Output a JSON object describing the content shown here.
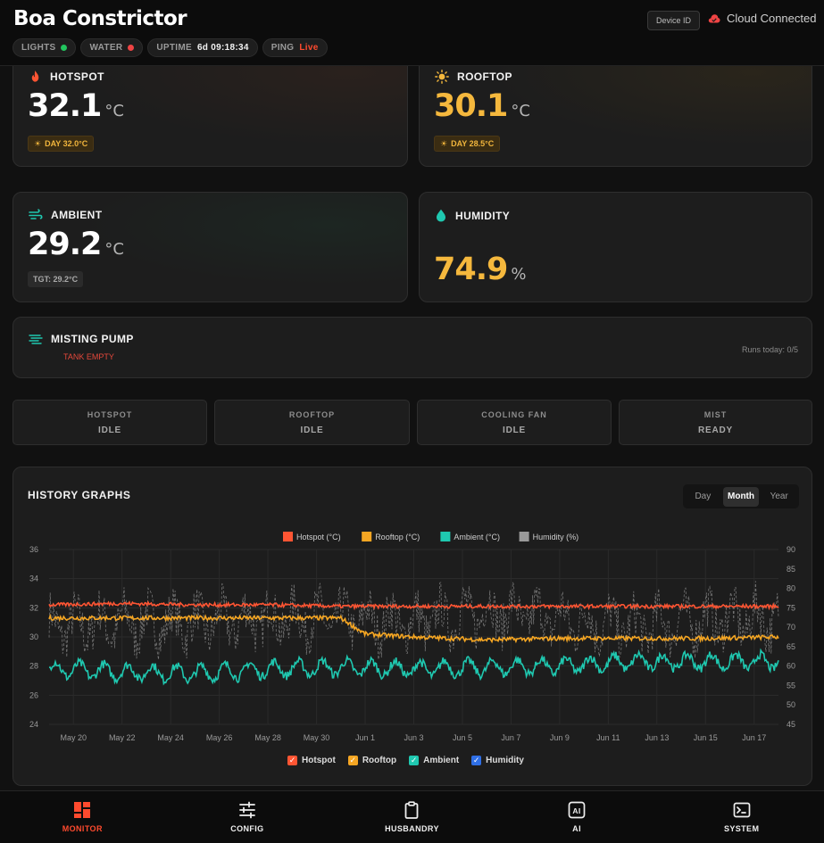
{
  "header": {
    "title": "Boa Constrictor",
    "device_button": "Device ID",
    "cloud_status": "Cloud Connected",
    "chips": {
      "lights_label": "LIGHTS",
      "lights_color": "#22c55e",
      "water_label": "WATER",
      "water_color": "#ef4444",
      "uptime_label": "UPTIME",
      "uptime_value": "6d 09:18:34",
      "ping_label": "PING",
      "ping_value": "Live"
    }
  },
  "sensors": {
    "hotspot": {
      "label": "HOTSPOT",
      "value": "32.1",
      "unit": "°C",
      "tag": "DAY 32.0°C",
      "color": "#ffffff"
    },
    "rooftop": {
      "label": "ROOFTOP",
      "value": "30.1",
      "unit": "°C",
      "tag": "DAY 28.5°C",
      "color": "#f5b83d"
    },
    "ambient": {
      "label": "AMBIENT",
      "value": "29.2",
      "unit": "°C",
      "tag": "TGT: 29.2°C",
      "color": "#ffffff"
    },
    "humidity": {
      "label": "HUMIDITY",
      "value": "74.9",
      "unit": "%",
      "color": "#f5b83d"
    }
  },
  "misting": {
    "label": "MISTING PUMP",
    "status": "TANK EMPTY",
    "runs": "Runs today: 0/5"
  },
  "status_boxes": [
    {
      "label": "HOTSPOT",
      "value": "IDLE"
    },
    {
      "label": "ROOFTOP",
      "value": "IDLE"
    },
    {
      "label": "COOLING FAN",
      "value": "IDLE"
    },
    {
      "label": "MIST",
      "value": "READY"
    }
  ],
  "history": {
    "title": "HISTORY GRAPHS",
    "ranges": [
      "Day",
      "Month",
      "Year"
    ],
    "active_range": "Month",
    "toggles": [
      {
        "label": "Hotspot",
        "color": "#ff5533"
      },
      {
        "label": "Rooftop",
        "color": "#f5a623"
      },
      {
        "label": "Ambient",
        "color": "#1fc8b0"
      },
      {
        "label": "Humidity",
        "color": "#2f6fe6"
      }
    ]
  },
  "chart_data": {
    "type": "line",
    "legend_position": "top-center",
    "grid": true,
    "x_ticks": [
      "May 20",
      "May 22",
      "May 24",
      "May 26",
      "May 28",
      "May 30",
      "Jun 1",
      "Jun 3",
      "Jun 5",
      "Jun 7",
      "Jun 9",
      "Jun 11",
      "Jun 13",
      "Jun 15",
      "Jun 17"
    ],
    "y_left": {
      "ticks": [
        24,
        26,
        28,
        30,
        32,
        34,
        36
      ],
      "lim": [
        24,
        36
      ]
    },
    "y_right": {
      "ticks": [
        45,
        50,
        55,
        60,
        65,
        70,
        75,
        80,
        85,
        90
      ],
      "lim": [
        45,
        90
      ]
    },
    "x_range_days": [
      "May 19",
      "Jun 18"
    ],
    "series": [
      {
        "name": "Hotspot (°C)",
        "color": "#ff5533",
        "axis": "left",
        "x": [
          "May 19",
          "May 22",
          "May 25",
          "May 28",
          "May 31",
          "Jun 3",
          "Jun 6",
          "Jun 9",
          "Jun 12",
          "Jun 15",
          "Jun 18"
        ],
        "values": [
          32.2,
          32.3,
          32.2,
          32.2,
          32.1,
          32.1,
          32.1,
          32.1,
          32.1,
          32.1,
          32.1
        ]
      },
      {
        "name": "Rooftop (°C)",
        "color": "#f5a623",
        "axis": "left",
        "x": [
          "May 19",
          "May 22",
          "May 25",
          "May 28",
          "May 31",
          "Jun 1",
          "Jun 3",
          "Jun 6",
          "Jun 9",
          "Jun 12",
          "Jun 15",
          "Jun 18"
        ],
        "values": [
          31.3,
          31.3,
          31.3,
          31.3,
          31.3,
          30.2,
          30.0,
          29.8,
          29.9,
          29.9,
          29.9,
          30.0
        ]
      },
      {
        "name": "Ambient (°C)",
        "color": "#1fc8b0",
        "axis": "left",
        "x": [
          "May 19",
          "May 22",
          "May 25",
          "May 28",
          "May 31",
          "Jun 3",
          "Jun 6",
          "Jun 9",
          "Jun 12",
          "Jun 15",
          "Jun 18"
        ],
        "values": [
          27.8,
          27.6,
          27.5,
          27.8,
          27.9,
          27.8,
          27.9,
          28.0,
          28.3,
          28.3,
          28.3
        ]
      },
      {
        "name": "Humidity (%)",
        "color": "#9a9a9a",
        "axis": "right",
        "x": [
          "May 19",
          "May 22",
          "May 25",
          "May 28",
          "May 31",
          "Jun 3",
          "Jun 6",
          "Jun 9",
          "Jun 12",
          "Jun 15",
          "Jun 18"
        ],
        "values": [
          70,
          71,
          71,
          72,
          72,
          71,
          74,
          72,
          70,
          72,
          72
        ]
      }
    ]
  },
  "nav": [
    {
      "label": "MONITOR",
      "icon": "grid-icon",
      "active": true
    },
    {
      "label": "CONFIG",
      "icon": "sliders-icon",
      "active": false
    },
    {
      "label": "HUSBANDRY",
      "icon": "clipboard-icon",
      "active": false
    },
    {
      "label": "AI",
      "icon": "ai-chip-icon",
      "active": false
    },
    {
      "label": "SYSTEM",
      "icon": "terminal-icon",
      "active": false
    }
  ]
}
